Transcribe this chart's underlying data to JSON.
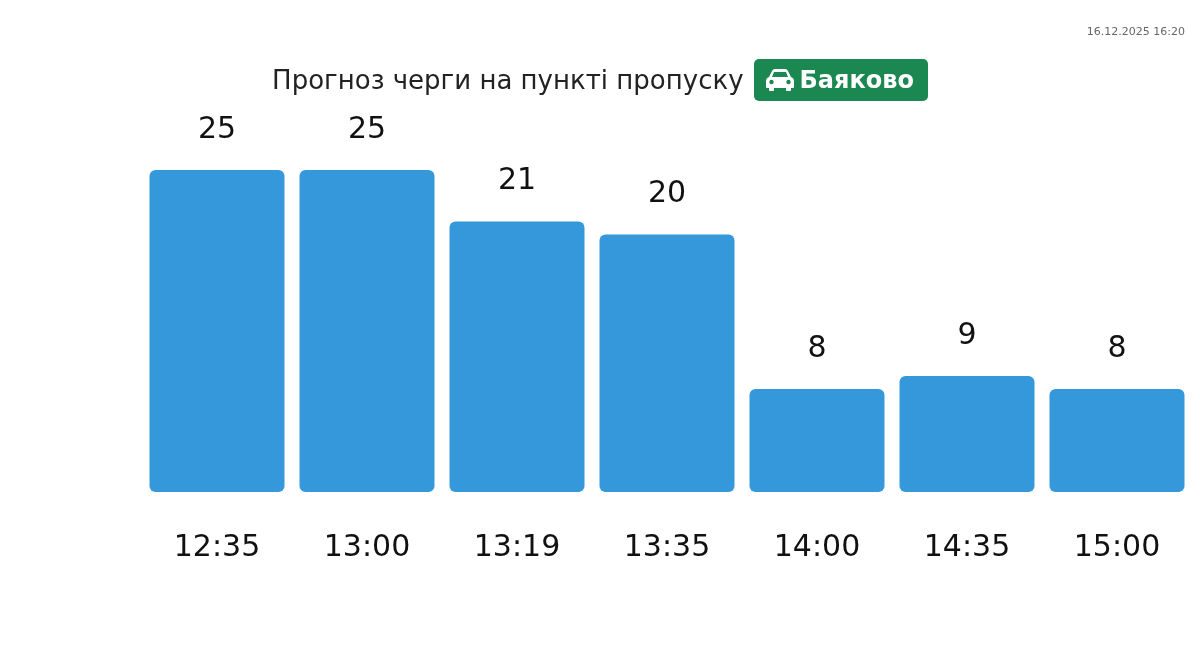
{
  "chart_data": {
    "type": "bar",
    "title": "Прогноз черги на пункті пропуску",
    "subtitle": "Баяково",
    "categories": [
      "12:35",
      "13:00",
      "13:19",
      "13:35",
      "14:00",
      "14:35",
      "15:00"
    ],
    "values": [
      25,
      25,
      21,
      20,
      8,
      9,
      8
    ],
    "color": "#3498db",
    "data_labels": true,
    "annotations": [
      "16.12.2025 16:20"
    ],
    "legend": false
  }
}
